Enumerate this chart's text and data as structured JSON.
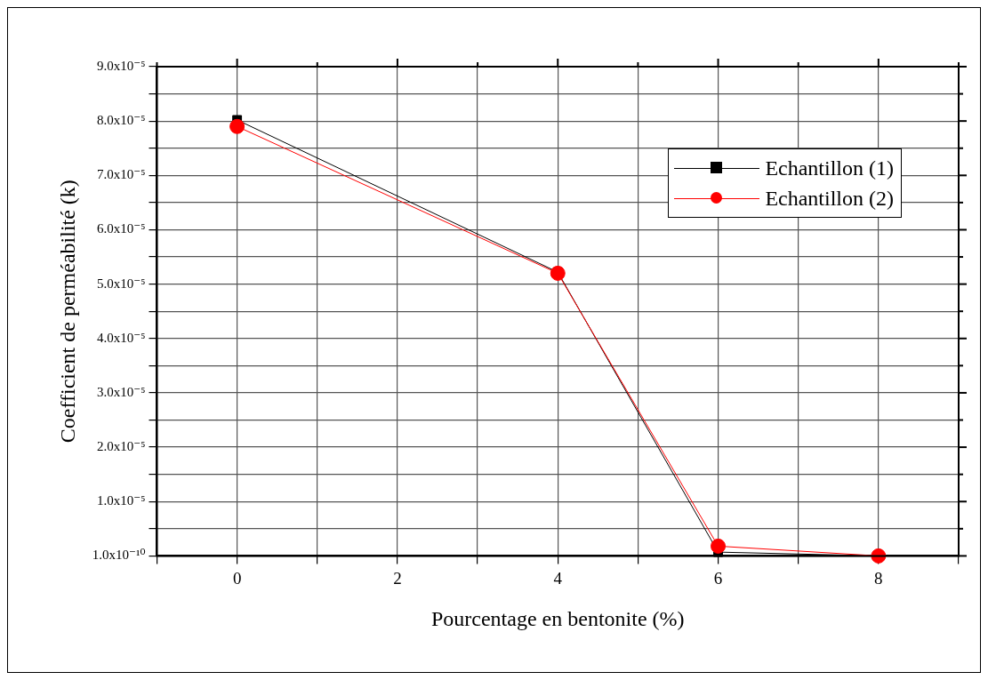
{
  "chart_data": {
    "type": "line",
    "xlabel": "Pourcentage en bentonite (%)",
    "ylabel": "Coefficient de perméabilité (k)",
    "x": [
      0,
      4,
      6,
      8
    ],
    "series": [
      {
        "name": "Echantillon (1)",
        "color": "#000000",
        "marker": "square",
        "values": [
          8.02e-05,
          5.22e-05,
          7e-07,
          1e-10
        ]
      },
      {
        "name": "Echantillon (2)",
        "color": "#ff0000",
        "marker": "circle",
        "values": [
          7.9e-05,
          5.2e-05,
          1.8e-06,
          1e-10
        ]
      }
    ],
    "xlim": [
      -1,
      9
    ],
    "xticks": [
      {
        "value": -1,
        "label": null
      },
      0,
      {
        "value": 1,
        "label": null
      },
      2,
      {
        "value": 3,
        "label": null
      },
      4,
      {
        "value": 5,
        "label": null
      },
      6,
      {
        "value": 7,
        "label": null
      },
      8,
      {
        "value": 9,
        "label": null
      }
    ],
    "ylim": [
      1e-10,
      9e-05
    ],
    "yticks": [
      {
        "value": 1e-10,
        "label": "1.0x10⁻¹⁰"
      },
      {
        "value": 5e-06,
        "label": null
      },
      {
        "value": 1e-05,
        "label": "1.0x10⁻⁵"
      },
      {
        "value": 1.5e-05,
        "label": null
      },
      {
        "value": 2e-05,
        "label": "2.0x10⁻⁵"
      },
      {
        "value": 2.5e-05,
        "label": null
      },
      {
        "value": 3e-05,
        "label": "3.0x10⁻⁵"
      },
      {
        "value": 3.5e-05,
        "label": null
      },
      {
        "value": 4e-05,
        "label": "4.0x10⁻⁵"
      },
      {
        "value": 4.5e-05,
        "label": null
      },
      {
        "value": 5e-05,
        "label": "5.0x10⁻⁵"
      },
      {
        "value": 5.5e-05,
        "label": null
      },
      {
        "value": 6e-05,
        "label": "6.0x10⁻⁵"
      },
      {
        "value": 6.5e-05,
        "label": null
      },
      {
        "value": 7e-05,
        "label": "7.0x10⁻⁵"
      },
      {
        "value": 7.5e-05,
        "label": null
      },
      {
        "value": 8e-05,
        "label": "8.0x10⁻⁵"
      },
      {
        "value": 8.5e-05,
        "label": null
      },
      {
        "value": 9e-05,
        "label": "9.0x10⁻⁵"
      }
    ],
    "grid": true,
    "legend": "top right"
  }
}
